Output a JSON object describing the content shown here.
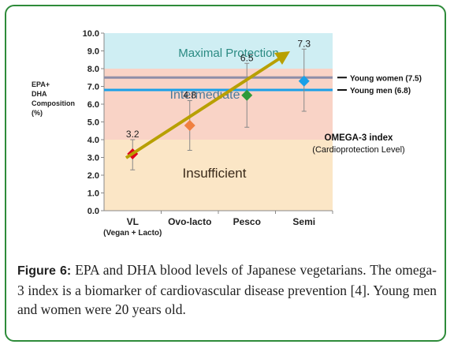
{
  "chart_data": {
    "type": "scatter",
    "ylabel_lines": [
      "EPA+",
      "DHA",
      "Composition",
      "(%)"
    ],
    "ylim": [
      0,
      10
    ],
    "yticks": [
      "0.0",
      "1.0",
      "2.0",
      "3.0",
      "4.0",
      "5.0",
      "6.0",
      "7.0",
      "8.0",
      "9.0",
      "10.0"
    ],
    "categories": [
      "VL",
      "Ovo-lacto",
      "Pesco",
      "Semi"
    ],
    "category_sublabel": "(Vegan + Lacto)",
    "points": [
      {
        "category": "VL",
        "value": 3.2,
        "label": "3.2",
        "err_low": 2.3,
        "err_high": 4.0,
        "color": "#e0001b"
      },
      {
        "category": "Ovo-lacto",
        "value": 4.8,
        "label": "4.8",
        "err_low": 3.4,
        "err_high": 6.2,
        "color": "#f08040"
      },
      {
        "category": "Pesco",
        "value": 6.5,
        "label": "6.5",
        "err_low": 4.7,
        "err_high": 8.3,
        "color": "#2e9a3a"
      },
      {
        "category": "Semi",
        "value": 7.3,
        "label": "7.3",
        "err_low": 5.6,
        "err_high": 9.1,
        "color": "#1aa0e8"
      }
    ],
    "zones": [
      {
        "name": "Insufficient",
        "from": 0,
        "to": 4,
        "color": "#fbe6c6"
      },
      {
        "name": "Intermediate",
        "from": 4,
        "to": 8,
        "color": "#f9d3c6"
      },
      {
        "name": "Maximal Protection",
        "from": 8,
        "to": 10,
        "color": "#cfeef3"
      }
    ],
    "reference_lines": [
      {
        "label": "Young women (7.5)",
        "value": 7.5,
        "color": "#8e8ea8"
      },
      {
        "label": "Young men (6.8)",
        "value": 6.8,
        "color": "#1aa0e8"
      }
    ],
    "annotation_title": "OMEGA-3 index",
    "annotation_sub": "(Cardioprotection Level)",
    "arrow_color": "#b8a000"
  },
  "caption": {
    "figure_label": "Figure 6:",
    "text": " EPA and DHA blood levels of Japanese vegetarians. The omega-3 index is a biomarker of cardiovascular disease prevention [4]. Young men and women were 20 years old."
  }
}
